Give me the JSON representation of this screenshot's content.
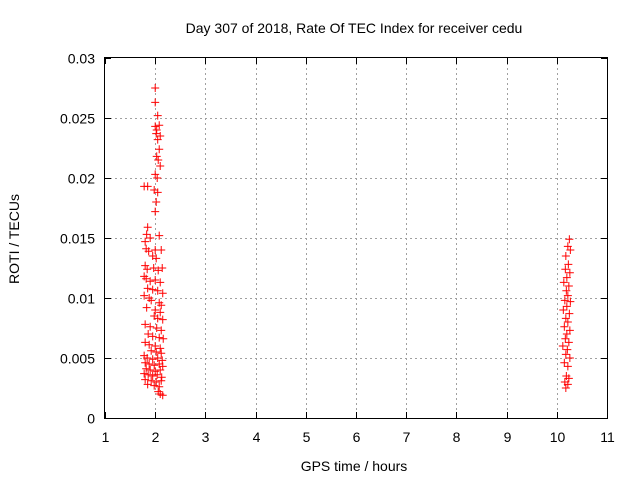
{
  "chart_data": {
    "type": "scatter",
    "title": "Day 307 of 2018, Rate Of TEC Index for receiver cedu",
    "xlabel": "GPS time / hours",
    "ylabel": "ROTI / TECUs",
    "xlim": [
      1,
      11
    ],
    "ylim": [
      0,
      0.03
    ],
    "x_ticks": [
      1,
      2,
      3,
      4,
      5,
      6,
      7,
      8,
      9,
      10,
      11
    ],
    "x_tick_labels": [
      "1",
      "2",
      "3",
      "4",
      "5",
      "6",
      "7",
      "8",
      "9",
      "10",
      "11"
    ],
    "y_ticks": [
      0,
      0.005,
      0.01,
      0.015,
      0.02,
      0.025,
      0.03
    ],
    "y_tick_labels": [
      "0",
      "0.005",
      "0.01",
      "0.015",
      "0.02",
      "0.025",
      "0.03"
    ],
    "grid": true,
    "marker": "+",
    "color": "#ff0000",
    "series": [
      {
        "name": "ROTI",
        "points": [
          [
            1.78,
            0.0193
          ],
          [
            1.85,
            0.0193
          ],
          [
            2.0,
            0.0275
          ],
          [
            2.0,
            0.0263
          ],
          [
            2.05,
            0.0252
          ],
          [
            2.0,
            0.0243
          ],
          [
            2.03,
            0.024
          ],
          [
            2.08,
            0.0244
          ],
          [
            2.02,
            0.0237
          ],
          [
            2.1,
            0.0235
          ],
          [
            2.05,
            0.0232
          ],
          [
            2.08,
            0.0224
          ],
          [
            2.03,
            0.0218
          ],
          [
            2.06,
            0.0215
          ],
          [
            2.1,
            0.021
          ],
          [
            2.0,
            0.0203
          ],
          [
            2.04,
            0.02
          ],
          [
            1.98,
            0.019
          ],
          [
            2.05,
            0.0188
          ],
          [
            2.02,
            0.018
          ],
          [
            2.0,
            0.0172
          ],
          [
            1.85,
            0.0159
          ],
          [
            1.83,
            0.0153
          ],
          [
            1.9,
            0.015
          ],
          [
            2.08,
            0.0152
          ],
          [
            1.8,
            0.0147
          ],
          [
            1.82,
            0.0141
          ],
          [
            1.87,
            0.0139
          ],
          [
            2.0,
            0.014
          ],
          [
            2.12,
            0.014
          ],
          [
            1.95,
            0.0135
          ],
          [
            2.02,
            0.0133
          ],
          [
            1.8,
            0.0127
          ],
          [
            1.84,
            0.0124
          ],
          [
            1.97,
            0.0125
          ],
          [
            2.06,
            0.0123
          ],
          [
            2.14,
            0.0125
          ],
          [
            1.78,
            0.0118
          ],
          [
            1.82,
            0.0116
          ],
          [
            1.9,
            0.0114
          ],
          [
            2.0,
            0.0115
          ],
          [
            2.1,
            0.0113
          ],
          [
            1.85,
            0.0108
          ],
          [
            1.95,
            0.0107
          ],
          [
            2.05,
            0.0106
          ],
          [
            2.15,
            0.0104
          ],
          [
            1.78,
            0.0102
          ],
          [
            1.88,
            0.01
          ],
          [
            1.92,
            0.0098
          ],
          [
            2.08,
            0.0096
          ],
          [
            2.12,
            0.0094
          ],
          [
            1.83,
            0.0092
          ],
          [
            2.0,
            0.009
          ],
          [
            2.1,
            0.0088
          ],
          [
            1.98,
            0.0085
          ],
          [
            2.05,
            0.0083
          ],
          [
            2.15,
            0.0082
          ],
          [
            1.8,
            0.0078
          ],
          [
            1.9,
            0.0076
          ],
          [
            2.03,
            0.0075
          ],
          [
            2.12,
            0.0073
          ],
          [
            1.86,
            0.007
          ],
          [
            1.95,
            0.0068
          ],
          [
            2.08,
            0.0067
          ],
          [
            2.16,
            0.0066
          ],
          [
            1.8,
            0.0063
          ],
          [
            1.88,
            0.0061
          ],
          [
            2.0,
            0.006
          ],
          [
            2.1,
            0.0058
          ],
          [
            1.92,
            0.0056
          ],
          [
            2.02,
            0.0055
          ],
          [
            2.12,
            0.0054
          ],
          [
            1.78,
            0.0052
          ],
          [
            1.84,
            0.005
          ],
          [
            1.95,
            0.0049
          ],
          [
            2.05,
            0.005
          ],
          [
            2.14,
            0.0048
          ],
          [
            1.8,
            0.0046
          ],
          [
            1.88,
            0.0045
          ],
          [
            1.98,
            0.0044
          ],
          [
            2.08,
            0.0045
          ],
          [
            2.15,
            0.0043
          ],
          [
            1.82,
            0.0041
          ],
          [
            1.9,
            0.004
          ],
          [
            2.0,
            0.0039
          ],
          [
            2.1,
            0.004
          ],
          [
            1.78,
            0.0037
          ],
          [
            1.86,
            0.0036
          ],
          [
            1.95,
            0.0035
          ],
          [
            2.04,
            0.0036
          ],
          [
            2.13,
            0.0034
          ],
          [
            1.8,
            0.0032
          ],
          [
            1.92,
            0.0031
          ],
          [
            2.02,
            0.003
          ],
          [
            2.12,
            0.0031
          ],
          [
            1.85,
            0.0028
          ],
          [
            1.98,
            0.0027
          ],
          [
            2.08,
            0.0026
          ],
          [
            2.06,
            0.0022
          ],
          [
            2.1,
            0.002
          ],
          [
            2.15,
            0.0019
          ],
          [
            10.25,
            0.0149
          ],
          [
            10.22,
            0.0143
          ],
          [
            10.27,
            0.014
          ],
          [
            10.18,
            0.0135
          ],
          [
            10.23,
            0.0128
          ],
          [
            10.17,
            0.0124
          ],
          [
            10.26,
            0.0121
          ],
          [
            10.2,
            0.0117
          ],
          [
            10.14,
            0.0113
          ],
          [
            10.24,
            0.011
          ],
          [
            10.19,
            0.0106
          ],
          [
            10.22,
            0.0102
          ],
          [
            10.16,
            0.0098
          ],
          [
            10.27,
            0.0097
          ],
          [
            10.2,
            0.0093
          ],
          [
            10.13,
            0.009
          ],
          [
            10.25,
            0.0087
          ],
          [
            10.18,
            0.0083
          ],
          [
            10.22,
            0.008
          ],
          [
            10.15,
            0.0076
          ],
          [
            10.26,
            0.0073
          ],
          [
            10.2,
            0.007
          ],
          [
            10.17,
            0.0066
          ],
          [
            10.24,
            0.0063
          ],
          [
            10.12,
            0.006
          ],
          [
            10.21,
            0.0057
          ],
          [
            10.18,
            0.0053
          ],
          [
            10.26,
            0.005
          ],
          [
            10.15,
            0.0046
          ],
          [
            10.22,
            0.0043
          ],
          [
            10.19,
            0.0035
          ],
          [
            10.24,
            0.0033
          ],
          [
            10.16,
            0.003
          ],
          [
            10.22,
            0.0028
          ],
          [
            10.18,
            0.0025
          ]
        ]
      }
    ]
  }
}
